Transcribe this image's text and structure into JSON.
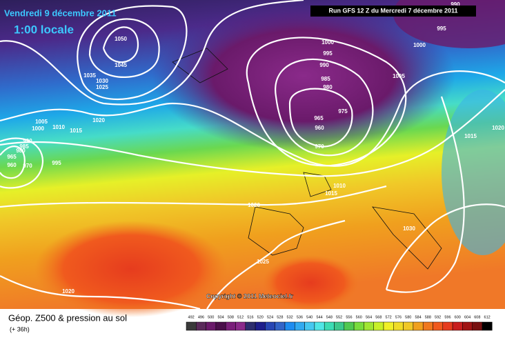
{
  "header": {
    "title": "Vendredi 9 décembre 2011",
    "time": "1:00 locale",
    "run": "Run GFS 12 Z du Mercredi 7 décembre 2011"
  },
  "isobar_labels": [
    1050,
    1045,
    1035,
    1030,
    1025,
    1020,
    1015,
    1010,
    1005,
    1000,
    995,
    990,
    985,
    980,
    965,
    960,
    970,
    1000,
    995,
    990,
    985,
    980,
    975,
    965,
    960,
    970,
    1005,
    1000,
    995,
    990,
    1015,
    1020,
    1010,
    1015,
    1020,
    1030,
    1025,
    1020
  ],
  "copyright": "Copyright © 2011 Meteociel.fr",
  "legend": {
    "title": "Géop. Z500 & pression au sol",
    "subtitle": "(+ 36h)",
    "ticks": [
      492,
      496,
      500,
      504,
      508,
      512,
      516,
      520,
      524,
      528,
      532,
      536,
      540,
      544,
      548,
      552,
      556,
      560,
      564,
      568,
      572,
      576,
      580,
      584,
      588,
      592,
      596,
      600,
      604,
      608,
      612
    ],
    "colors": [
      "#3a3a3a",
      "#5a2a5a",
      "#6a1a6a",
      "#4b0f4b",
      "#7a1f7a",
      "#8b2a8b",
      "#2d2d6e",
      "#1e1e8c",
      "#2846b4",
      "#3264c8",
      "#1e8cf0",
      "#32aaf0",
      "#46c8f0",
      "#50e6e6",
      "#3cdcb4",
      "#3cc88c",
      "#50c850",
      "#78dc3c",
      "#a0e632",
      "#c8f028",
      "#f0f028",
      "#f0dc28",
      "#f0c828",
      "#f0a01e",
      "#f0781e",
      "#f05a1e",
      "#e63c1e",
      "#c81e1e",
      "#a01414",
      "#781010",
      "#000000"
    ]
  }
}
